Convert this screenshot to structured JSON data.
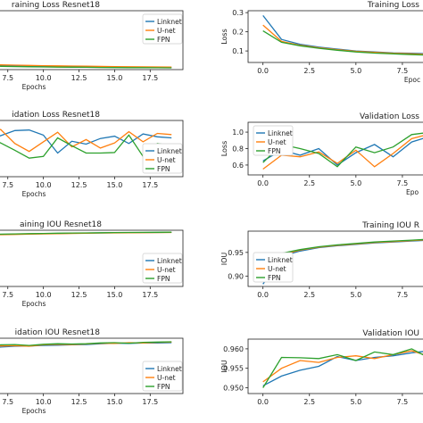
{
  "colors": {
    "linknet": "#1f77b4",
    "unet": "#ff7f0e",
    "fpn": "#2ca02c"
  },
  "chart_data": [
    {
      "id": "train-loss-r18",
      "type": "line",
      "title": "raining Loss Resnet18",
      "xlabel": "Epochs",
      "ylabel": "",
      "xticks": [
        "7.5",
        "10.0",
        "12.5",
        "15.0",
        "17.5"
      ],
      "yticks": [],
      "xlim": [
        6.2,
        19.8
      ],
      "ylim": [
        0,
        10
      ],
      "grid": false,
      "legend": {
        "position": "top-right",
        "labels": [
          "Linknet",
          "U-net",
          "FPN"
        ]
      },
      "x": [
        6,
        7,
        8,
        9,
        10,
        11,
        12,
        13,
        14,
        15,
        16,
        17,
        18,
        19
      ],
      "series": [
        {
          "name": "Linknet",
          "values": [
            0.75,
            0.7,
            0.66,
            0.62,
            0.58,
            0.55,
            0.52,
            0.49,
            0.46,
            0.44,
            0.42,
            0.4,
            0.38,
            0.36
          ]
        },
        {
          "name": "U-net",
          "values": [
            0.85,
            0.8,
            0.75,
            0.71,
            0.67,
            0.63,
            0.6,
            0.57,
            0.54,
            0.51,
            0.49,
            0.47,
            0.45,
            0.43
          ]
        },
        {
          "name": "FPN",
          "values": [
            0.6,
            0.56,
            0.52,
            0.49,
            0.46,
            0.43,
            0.41,
            0.39,
            0.37,
            0.35,
            0.34,
            0.33,
            0.32,
            0.31
          ]
        }
      ]
    },
    {
      "id": "train-loss-r34",
      "type": "line",
      "title": "Training Loss",
      "xlabel": "Epoc",
      "ylabel": "Loss",
      "xticks": [
        "0.0",
        "2.5",
        "5.0",
        "7.5"
      ],
      "yticks": [
        "0.1",
        "0.2",
        "0.3"
      ],
      "xlim": [
        -0.8,
        8.8
      ],
      "ylim": [
        0.04,
        0.31
      ],
      "grid": false,
      "legend": null,
      "x": [
        0,
        1,
        2,
        3,
        4,
        5,
        6,
        7,
        8,
        9
      ],
      "series": [
        {
          "name": "Linknet",
          "values": [
            0.285,
            0.16,
            0.135,
            0.12,
            0.11,
            0.1,
            0.095,
            0.09,
            0.088,
            0.085
          ]
        },
        {
          "name": "U-net",
          "values": [
            0.235,
            0.15,
            0.13,
            0.117,
            0.107,
            0.098,
            0.093,
            0.088,
            0.085,
            0.082
          ]
        },
        {
          "name": "FPN",
          "values": [
            0.205,
            0.145,
            0.127,
            0.114,
            0.104,
            0.095,
            0.089,
            0.085,
            0.081,
            0.078
          ]
        }
      ]
    },
    {
      "id": "val-loss-r18",
      "type": "line",
      "title": "idation Loss Resnet18",
      "xlabel": "Epochs",
      "ylabel": "",
      "xticks": [
        "7.5",
        "10.0",
        "12.5",
        "15.0",
        "17.5"
      ],
      "yticks": [],
      "xlim": [
        6.2,
        19.8
      ],
      "ylim": [
        0,
        10
      ],
      "grid": false,
      "legend": {
        "position": "bottom-right",
        "labels": [
          "Linknet",
          "U-net",
          "FPN"
        ]
      },
      "x": [
        6,
        7,
        8,
        9,
        10,
        11,
        12,
        13,
        14,
        15,
        16,
        17,
        18,
        19
      ],
      "series": [
        {
          "name": "Linknet",
          "values": [
            6.2,
            7.3,
            8.2,
            8.3,
            7.4,
            4.2,
            6.3,
            5.8,
            6.8,
            7.2,
            5.9,
            7.6,
            7.1,
            6.9
          ]
        },
        {
          "name": "U-net",
          "values": [
            7.6,
            8.4,
            5.9,
            4.5,
            6.2,
            7.9,
            5.3,
            6.6,
            5.1,
            6.0,
            8.0,
            6.2,
            7.7,
            7.5
          ]
        },
        {
          "name": "FPN",
          "values": [
            7.0,
            6.0,
            4.7,
            3.3,
            3.6,
            6.9,
            5.5,
            4.2,
            4.2,
            4.3,
            7.4,
            3.6,
            5.9,
            5.5
          ]
        }
      ]
    },
    {
      "id": "val-loss-r34",
      "type": "line",
      "title": "Validation Loss",
      "xlabel": "Epo",
      "ylabel": "Loss",
      "xticks": [
        "0.0",
        "2.5",
        "5.0",
        "7.5"
      ],
      "yticks": [
        "0.6",
        "0.8",
        "1.0"
      ],
      "xlim": [
        -0.8,
        8.8
      ],
      "ylim": [
        0.48,
        1.12
      ],
      "grid": false,
      "legend": {
        "position": "top-left",
        "labels": [
          "Linknet",
          "U-net",
          "FPN"
        ]
      },
      "x": [
        0,
        1,
        2,
        3,
        4,
        5,
        6,
        7,
        8,
        9
      ],
      "series": [
        {
          "name": "Linknet",
          "values": [
            0.65,
            0.78,
            0.72,
            0.8,
            0.6,
            0.75,
            0.85,
            0.7,
            0.88,
            0.95
          ]
        },
        {
          "name": "U-net",
          "values": [
            0.55,
            0.72,
            0.7,
            0.76,
            0.62,
            0.78,
            0.58,
            0.74,
            0.92,
            0.98
          ]
        },
        {
          "name": "FPN",
          "values": [
            0.63,
            0.85,
            0.8,
            0.74,
            0.58,
            0.82,
            0.75,
            0.82,
            0.97,
            1.0
          ]
        }
      ]
    },
    {
      "id": "train-iou-r18",
      "type": "line",
      "title": "aining IOU Resnet18",
      "xlabel": "Epochs",
      "ylabel": "",
      "xticks": [
        "7.5",
        "10.0",
        "12.5",
        "15.0",
        "17.5"
      ],
      "yticks": [],
      "xlim": [
        6.2,
        19.8
      ],
      "ylim": [
        0,
        10
      ],
      "grid": false,
      "legend": {
        "position": "bottom-right",
        "labels": [
          "Linknet",
          "U-net",
          "FPN"
        ]
      },
      "x": [
        6,
        7,
        8,
        9,
        10,
        11,
        12,
        13,
        14,
        15,
        16,
        17,
        18,
        19
      ],
      "series": [
        {
          "name": "Linknet",
          "values": [
            9.2,
            9.25,
            9.3,
            9.35,
            9.38,
            9.42,
            9.46,
            9.5,
            9.52,
            9.55,
            9.57,
            9.59,
            9.6,
            9.62
          ]
        },
        {
          "name": "U-net",
          "values": [
            9.15,
            9.2,
            9.26,
            9.31,
            9.35,
            9.39,
            9.43,
            9.47,
            9.5,
            9.52,
            9.55,
            9.57,
            9.58,
            9.6
          ]
        },
        {
          "name": "FPN",
          "values": [
            9.25,
            9.3,
            9.35,
            9.4,
            9.43,
            9.47,
            9.5,
            9.53,
            9.56,
            9.58,
            9.6,
            9.62,
            9.63,
            9.65
          ]
        }
      ]
    },
    {
      "id": "train-iou-r34",
      "type": "line",
      "title": "Training IOU R",
      "xlabel": "",
      "ylabel": "IOU",
      "xticks": [
        "0.0",
        "2.5",
        "5.0",
        "7.5"
      ],
      "yticks": [
        "0.90",
        "0.95"
      ],
      "xlim": [
        -0.8,
        8.8
      ],
      "ylim": [
        0.878,
        0.995
      ],
      "grid": false,
      "legend": {
        "position": "bottom-left",
        "labels": [
          "Linknet",
          "U-net",
          "FPN"
        ]
      },
      "x": [
        0,
        1,
        2,
        3,
        4,
        5,
        6,
        7,
        8,
        9
      ],
      "series": [
        {
          "name": "Linknet",
          "values": [
            0.883,
            0.942,
            0.953,
            0.96,
            0.964,
            0.967,
            0.97,
            0.972,
            0.974,
            0.976
          ]
        },
        {
          "name": "U-net",
          "values": [
            0.91,
            0.945,
            0.955,
            0.961,
            0.965,
            0.968,
            0.971,
            0.973,
            0.975,
            0.977
          ]
        },
        {
          "name": "FPN",
          "values": [
            0.93,
            0.948,
            0.956,
            0.962,
            0.966,
            0.969,
            0.972,
            0.974,
            0.976,
            0.978
          ]
        }
      ]
    },
    {
      "id": "val-iou-r18",
      "type": "line",
      "title": "idation IOU Resnet18",
      "xlabel": "Epochs",
      "ylabel": "",
      "xticks": [
        "7.5",
        "10.0",
        "12.5",
        "15.0",
        "17.5"
      ],
      "yticks": [],
      "xlim": [
        6.2,
        19.8
      ],
      "ylim": [
        0,
        10
      ],
      "grid": false,
      "legend": {
        "position": "bottom-right",
        "labels": [
          "Linknet",
          "U-net",
          "FPN"
        ]
      },
      "x": [
        6,
        7,
        8,
        9,
        10,
        11,
        12,
        13,
        14,
        15,
        16,
        17,
        18,
        19
      ],
      "series": [
        {
          "name": "Linknet",
          "values": [
            8.3,
            8.4,
            8.55,
            8.6,
            8.7,
            8.75,
            8.8,
            8.85,
            9.0,
            9.1,
            9.05,
            9.15,
            9.15,
            9.2
          ]
        },
        {
          "name": "U-net",
          "values": [
            8.5,
            8.6,
            8.65,
            8.55,
            8.8,
            8.9,
            8.85,
            8.95,
            9.1,
            9.05,
            9.2,
            9.15,
            9.25,
            9.3
          ]
        },
        {
          "name": "FPN",
          "values": [
            8.6,
            8.8,
            8.85,
            8.7,
            8.9,
            9.0,
            8.95,
            9.0,
            9.15,
            9.2,
            9.1,
            9.25,
            9.3,
            9.35
          ]
        }
      ]
    },
    {
      "id": "val-iou-r34",
      "type": "line",
      "title": "Validation IOU",
      "xlabel": "",
      "ylabel": "IOU",
      "xticks": [
        "0.0",
        "2.5",
        "5.0",
        "7.5"
      ],
      "yticks": [
        "0.950",
        "0.955",
        "0.960"
      ],
      "xlim": [
        -0.8,
        8.8
      ],
      "ylim": [
        0.9485,
        0.9625
      ],
      "grid": false,
      "legend": null,
      "x": [
        0,
        1,
        2,
        3,
        4,
        5,
        6,
        7,
        8,
        9
      ],
      "series": [
        {
          "name": "Linknet",
          "values": [
            0.9505,
            0.953,
            0.9545,
            0.9555,
            0.958,
            0.957,
            0.9578,
            0.9582,
            0.959,
            0.9595
          ]
        },
        {
          "name": "U-net",
          "values": [
            0.9515,
            0.955,
            0.957,
            0.9565,
            0.9578,
            0.9582,
            0.9575,
            0.9585,
            0.9595,
            0.958
          ]
        },
        {
          "name": "FPN",
          "values": [
            0.95,
            0.9578,
            0.9577,
            0.9575,
            0.9585,
            0.957,
            0.9592,
            0.9585,
            0.96,
            0.9575
          ]
        }
      ]
    }
  ]
}
